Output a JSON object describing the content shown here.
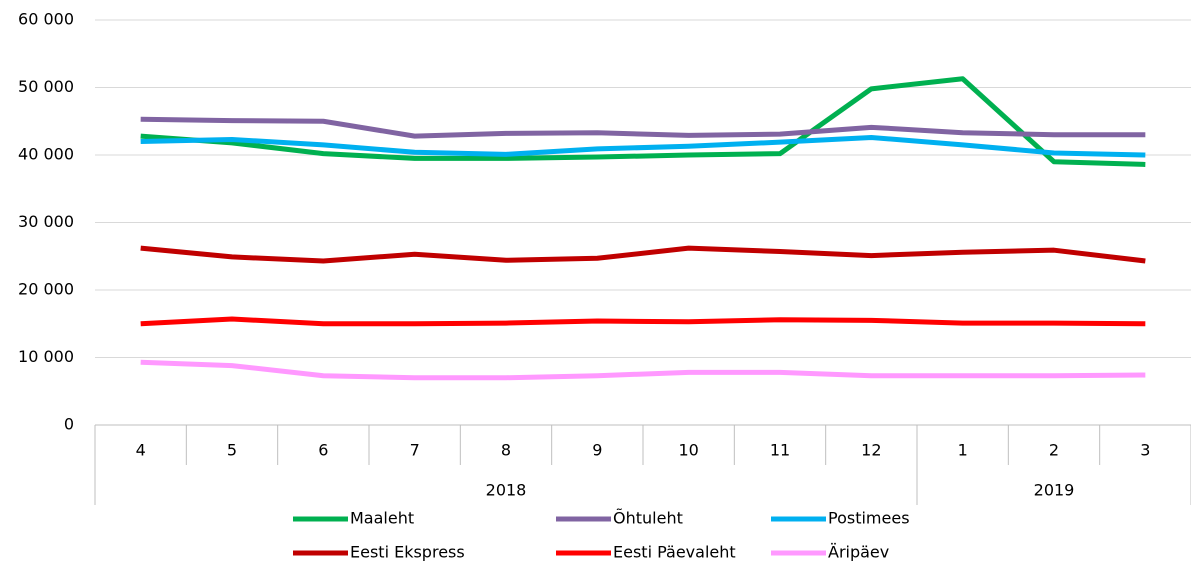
{
  "chart_data": {
    "type": "line",
    "categories": [
      "4",
      "5",
      "6",
      "7",
      "8",
      "9",
      "10",
      "11",
      "12",
      "1",
      "2",
      "3"
    ],
    "category_groups": [
      {
        "label": "2018",
        "span": 9
      },
      {
        "label": "2019",
        "span": 3
      }
    ],
    "series": [
      {
        "name": "Maaleht",
        "color": "#00b050",
        "values": [
          42800,
          41800,
          40200,
          39500,
          39500,
          39700,
          40000,
          40200,
          49800,
          51300,
          39000,
          38600
        ]
      },
      {
        "name": "Õhtuleht",
        "color": "#8064a2",
        "values": [
          45300,
          45100,
          45000,
          42800,
          43200,
          43300,
          42900,
          43100,
          44100,
          43300,
          43000,
          43000
        ]
      },
      {
        "name": "Postimees",
        "color": "#00b0f0",
        "values": [
          42000,
          42300,
          41500,
          40400,
          40100,
          40900,
          41300,
          41900,
          42600,
          41500,
          40300,
          40000
        ]
      },
      {
        "name": "Eesti Ekspress",
        "color": "#c00000",
        "values": [
          26200,
          24900,
          24300,
          25300,
          24400,
          24700,
          26200,
          25700,
          25100,
          25600,
          25900,
          24300
        ]
      },
      {
        "name": "Eesti Päevaleht",
        "color": "#ff0000",
        "values": [
          15000,
          15700,
          15000,
          15000,
          15100,
          15400,
          15300,
          15600,
          15500,
          15100,
          15100,
          15000
        ]
      },
      {
        "name": "Äripäev",
        "color": "#ff99ff",
        "values": [
          9300,
          8800,
          7300,
          7000,
          7000,
          7300,
          7800,
          7800,
          7300,
          7300,
          7300,
          7400
        ]
      }
    ],
    "ylim": [
      0,
      60000
    ],
    "yticks": [
      0,
      {
        "value": 10000,
        "label": "10 000"
      },
      {
        "value": 20000,
        "label": "20 000"
      },
      {
        "value": 30000,
        "label": "30 000"
      },
      {
        "value": 40000,
        "label": "40 000"
      },
      {
        "value": 50000,
        "label": "50 000"
      },
      {
        "value": 60000,
        "label": "60 000"
      }
    ],
    "grid": true,
    "legend": "bottom"
  }
}
